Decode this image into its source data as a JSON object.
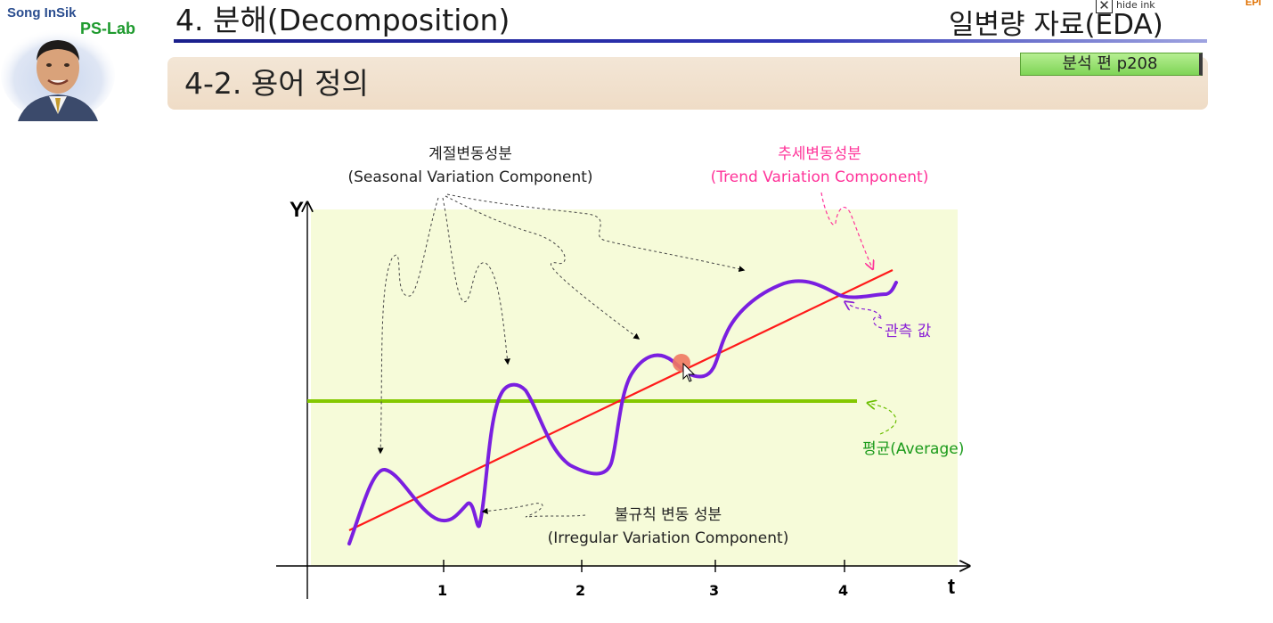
{
  "header": {
    "brand_name": "Song InSik",
    "brand_lab": "PS-Lab",
    "title": "4. 분해(Decomposition)",
    "subject": "일변량 자료(EDA)",
    "hide_ink_label": "hide ink",
    "hide_ink_icon": "close-box-icon",
    "corner_tag": "EPI",
    "section_title": "4-2. 용어 정의",
    "page_ref": "분석 편 p208"
  },
  "diagram": {
    "y_axis_label": "Y",
    "x_axis_label": "t",
    "x_ticks": [
      "1",
      "2",
      "3",
      "4"
    ],
    "seasonal_label_ko": "계절변동성분",
    "seasonal_label_en": "(Seasonal Variation Component)",
    "trend_label_ko": "추세변동성분",
    "trend_label_en": "(Trend Variation Component)",
    "observed_label": "관측 값",
    "average_label": "평균(Average)",
    "irregular_label_ko": "불규칙 변동 성분",
    "irregular_label_en": "(Irregular Variation Component)",
    "colors": {
      "plot_background": "#f6fbd9",
      "observed_series": "#7a1fe0",
      "trend_line": "#ff1a1a",
      "average_line": "#84c800",
      "trend_label": "#ff3399",
      "observed_label": "#8a1fd6",
      "average_label": "#1a9a1a"
    }
  }
}
